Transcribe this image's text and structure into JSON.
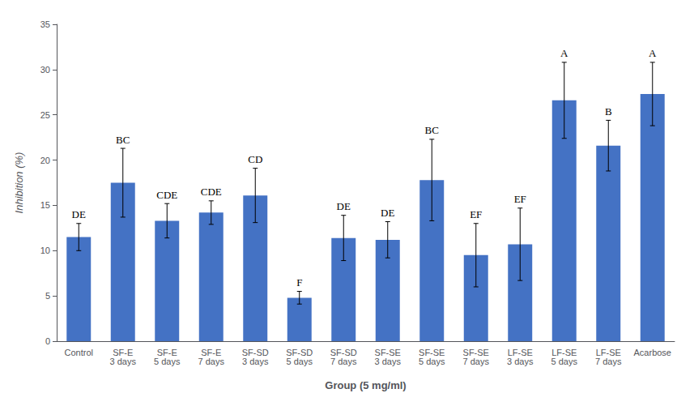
{
  "chart_data": {
    "type": "bar",
    "xlabel": "Group (5 mg/ml)",
    "ylabel": "Inhibition (%)",
    "categories": [
      "Control",
      "SF-E\n3 days",
      "SF-E\n5 days",
      "SF-E\n7 days",
      "SF-SD\n3 days",
      "SF-SD\n5 days",
      "SF-SD\n7 days",
      "SF-SE\n3 days",
      "SF-SE\n5 days",
      "SF-SE\n7 days",
      "LF-SE\n3 days",
      "LF-SE\n5 days",
      "LF-SE\n7 days",
      "Acarbose"
    ],
    "values": [
      11.5,
      17.5,
      13.3,
      14.2,
      16.1,
      4.8,
      11.4,
      11.2,
      17.8,
      9.5,
      10.7,
      26.6,
      21.6,
      27.3
    ],
    "errors": [
      1.5,
      3.8,
      1.9,
      1.3,
      3.0,
      0.7,
      2.5,
      2.0,
      4.5,
      3.5,
      4.0,
      4.2,
      2.8,
      3.5
    ],
    "annotations": [
      "DE",
      "BC",
      "CDE",
      "CDE",
      "CD",
      "F",
      "DE",
      "DE",
      "BC",
      "EF",
      "EF",
      "A",
      "B",
      "A"
    ],
    "color": "#4472C4",
    "ylim": [
      0,
      35
    ],
    "yticks": [
      0,
      5,
      10,
      15,
      20,
      25,
      30,
      35
    ],
    "grid": false
  }
}
